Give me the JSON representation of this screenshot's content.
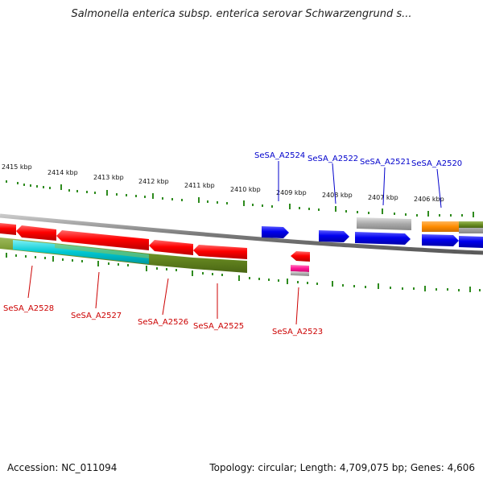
{
  "title": "Salmonella enterica subsp. enterica serovar Schwarzengrund s...",
  "footer": {
    "accession": "Accession: NC_011094",
    "summary": "Topology: circular; Length: 4,709,075 bp; Genes: 4,606"
  },
  "scale_labels": [
    "2415 kbp",
    "2414 kbp",
    "2413 kbp",
    "2412 kbp",
    "2411 kbp",
    "2410 kbp",
    "2409 kbp",
    "2408 kbp",
    "2407 kbp",
    "2406 kbp"
  ],
  "gene_labels_top": [
    "SeSA_A2524",
    "SeSA_A2522",
    "SeSA_A2521",
    "SeSA_A2520"
  ],
  "gene_labels_bottom": [
    "SeSA_A2528",
    "SeSA_A2527",
    "SeSA_A2526",
    "SeSA_A2525",
    "SeSA_A2523"
  ],
  "colors": {
    "forward_label": "#0000cc",
    "reverse_label": "#cc0000",
    "tick": "#2e8b1e",
    "backbone": "#808080",
    "red_gene": "#ff0000",
    "blue_gene": "#0000ee",
    "olive_track": "#6b8e23",
    "cyan_track": "#00c8d2",
    "grey_track": "#a9a9a9",
    "orange_track": "#ff8c00",
    "pink_gene": "#ff1493"
  }
}
